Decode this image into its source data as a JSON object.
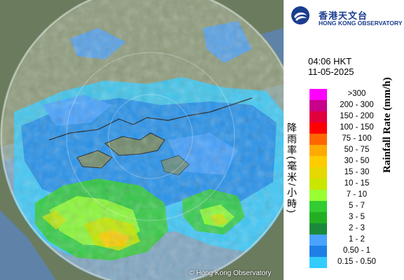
{
  "brand": {
    "name_cn": "香港天文台",
    "name_en": "HONG KONG OBSERVATORY",
    "logo_icon": "hko-logo-icon",
    "color": "#1a3d8f"
  },
  "map": {
    "copyright": "© Hong Kong Observatory"
  },
  "timestamp": {
    "time": "04:06 HKT",
    "date": "11-05-2025"
  },
  "legend": {
    "title_en": "Rainfall Rate (mm/h)",
    "title_cn": "降雨率(毫米/小時)",
    "items": [
      {
        "label": ">300",
        "color": "#ff00ff"
      },
      {
        "label": "200 - 300",
        "color": "#c8008a"
      },
      {
        "label": "150 - 200",
        "color": "#e0003c"
      },
      {
        "label": "100 - 150",
        "color": "#ff0000"
      },
      {
        "label": "75 - 100",
        "color": "#ff6600"
      },
      {
        "label": "50 - 75",
        "color": "#ffaa00"
      },
      {
        "label": "30 - 50",
        "color": "#ffcc00"
      },
      {
        "label": "15 - 30",
        "color": "#e6d800"
      },
      {
        "label": "10 - 15",
        "color": "#c8e600"
      },
      {
        "label": "7 - 10",
        "color": "#99ff33"
      },
      {
        "label": "5 - 7",
        "color": "#33cc33"
      },
      {
        "label": "3 - 5",
        "color": "#22b022"
      },
      {
        "label": "2 - 3",
        "color": "#1a8a3a"
      },
      {
        "label": "1 - 2",
        "color": "#4aa3ff"
      },
      {
        "label": "0.50 - 1",
        "color": "#1e7fe6"
      },
      {
        "label": "0.15 - 0.50",
        "color": "#33ccff"
      }
    ]
  }
}
